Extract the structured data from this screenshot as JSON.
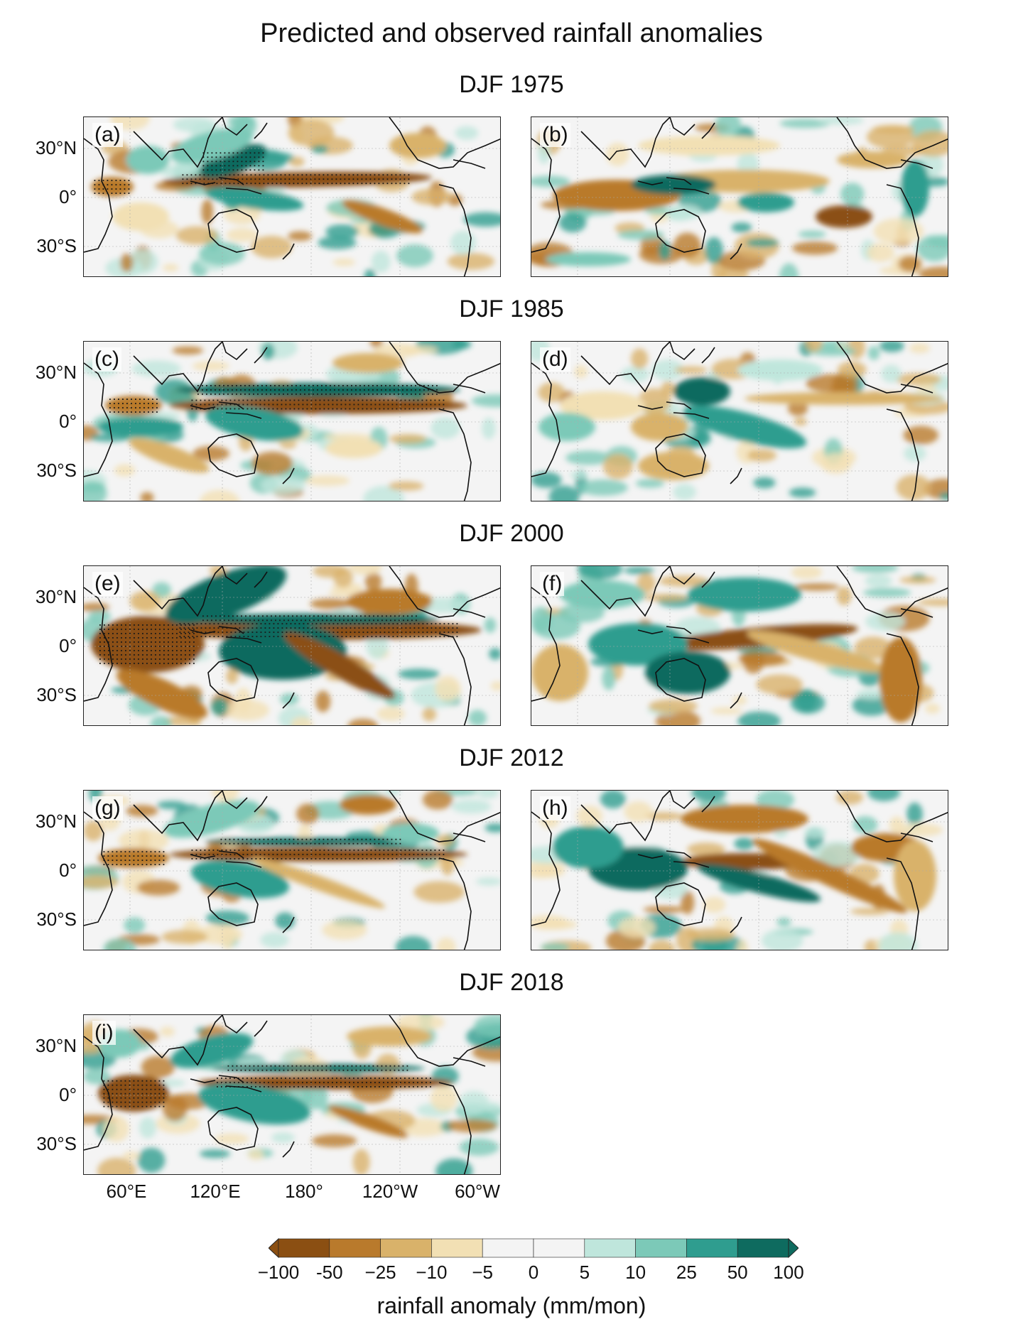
{
  "title": "Predicted and observed rainfall anomalies",
  "rows": [
    {
      "title": "DJF 1975",
      "left_label": "(a)",
      "right_label": "(b)"
    },
    {
      "title": "DJF 1985",
      "left_label": "(c)",
      "right_label": "(d)"
    },
    {
      "title": "DJF 2000",
      "left_label": "(e)",
      "right_label": "(f)"
    },
    {
      "title": "DJF 2012",
      "left_label": "(g)",
      "right_label": "(h)"
    },
    {
      "title": "DJF 2018",
      "left_label": "(i)"
    }
  ],
  "lat_labels": [
    "30°N",
    "0°",
    "30°S"
  ],
  "lon_labels": [
    "60°E",
    "120°E",
    "180°",
    "120°W",
    "60°W"
  ],
  "colorbar": {
    "title": "rainfall anomaly (mm/mon)",
    "ticks": [
      "−100",
      "-50",
      "−25",
      "−10",
      "−5",
      "0",
      "5",
      "10",
      "25",
      "50",
      "100"
    ],
    "colors": [
      "#8b4f12",
      "#b97a2c",
      "#d9b26a",
      "#f2e0b4",
      "#f4f4f4",
      "#f4f4f4",
      "#bfe6dc",
      "#7cc9b8",
      "#2f9d8f",
      "#0e6b5f"
    ]
  },
  "chart_data": {
    "type": "heatmap",
    "variable": "rainfall anomaly",
    "units": "mm/mon",
    "season": "DJF",
    "years": [
      1975,
      1985,
      2000,
      2012,
      2018
    ],
    "panels": [
      "(a)",
      "(b)",
      "(c)",
      "(d)",
      "(e)",
      "(f)",
      "(g)",
      "(h)",
      "(i)"
    ],
    "levels": [
      -100,
      -50,
      -25,
      -10,
      -5,
      0,
      5,
      10,
      25,
      50,
      100
    ],
    "x_ticks": [
      "60°E",
      "120°E",
      "180°",
      "120°W",
      "60°W"
    ],
    "y_ticks": [
      "30°N",
      "0°",
      "30°S"
    ],
    "colorbar_extend": "both"
  }
}
